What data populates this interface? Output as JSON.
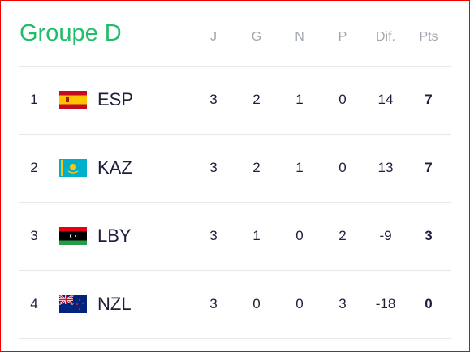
{
  "header": {
    "title": "Groupe D",
    "columns": [
      "J",
      "G",
      "N",
      "P",
      "Dif.",
      "Pts"
    ]
  },
  "table": {
    "rows": [
      [
        1,
        "ESP",
        3,
        2,
        1,
        0,
        14,
        7
      ],
      [
        2,
        "KAZ",
        3,
        2,
        1,
        0,
        13,
        7
      ],
      [
        3,
        "LBY",
        3,
        1,
        0,
        2,
        -9,
        3
      ],
      [
        4,
        "NZL",
        3,
        0,
        0,
        3,
        -18,
        0
      ]
    ]
  }
}
